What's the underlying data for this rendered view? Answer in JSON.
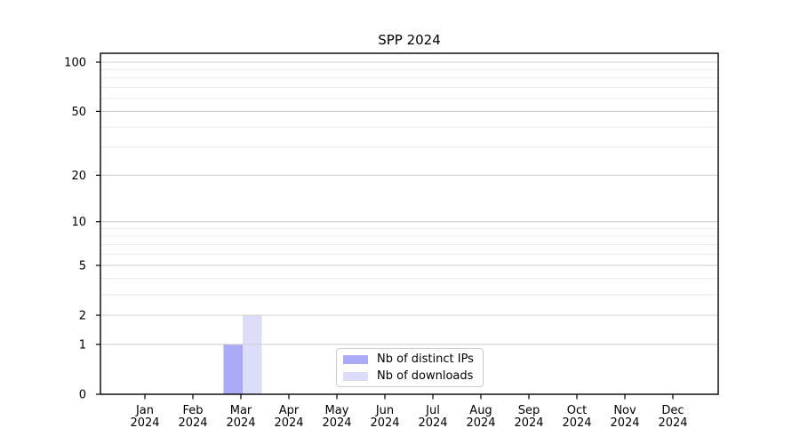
{
  "chart_data": {
    "type": "bar",
    "title": "SPP 2024",
    "categories": [
      "Jan 2024",
      "Feb 2024",
      "Mar 2024",
      "Apr 2024",
      "May 2024",
      "Jun 2024",
      "Jul 2024",
      "Aug 2024",
      "Sep 2024",
      "Oct 2024",
      "Nov 2024",
      "Dec 2024"
    ],
    "series": [
      {
        "name": "Nb of distinct IPs",
        "color": "#aaaaf7",
        "values": [
          0,
          0,
          1,
          0,
          0,
          0,
          0,
          0,
          0,
          0,
          0,
          0
        ]
      },
      {
        "name": "Nb of downloads",
        "color": "#ddddfa",
        "values": [
          0,
          0,
          2,
          0,
          0,
          0,
          0,
          0,
          0,
          0,
          0,
          0
        ]
      }
    ],
    "xlabel": "",
    "ylabel": "",
    "yscale": "log1p",
    "ylim": [
      0,
      113
    ],
    "yticks": [
      0,
      1,
      2,
      5,
      10,
      20,
      50,
      100
    ],
    "minor_gridlines": [
      3,
      4,
      6,
      7,
      8,
      9,
      30,
      40,
      60,
      70,
      80,
      90
    ],
    "grid": "horizontal",
    "legend": {
      "position": "inside-bottom-center",
      "border_color": "#cccccc"
    },
    "layout": {
      "grid_major_color": "#d0d0d0",
      "grid_minor_color": "#ececec",
      "axis_color": "#000000",
      "text_color": "#000000"
    }
  }
}
